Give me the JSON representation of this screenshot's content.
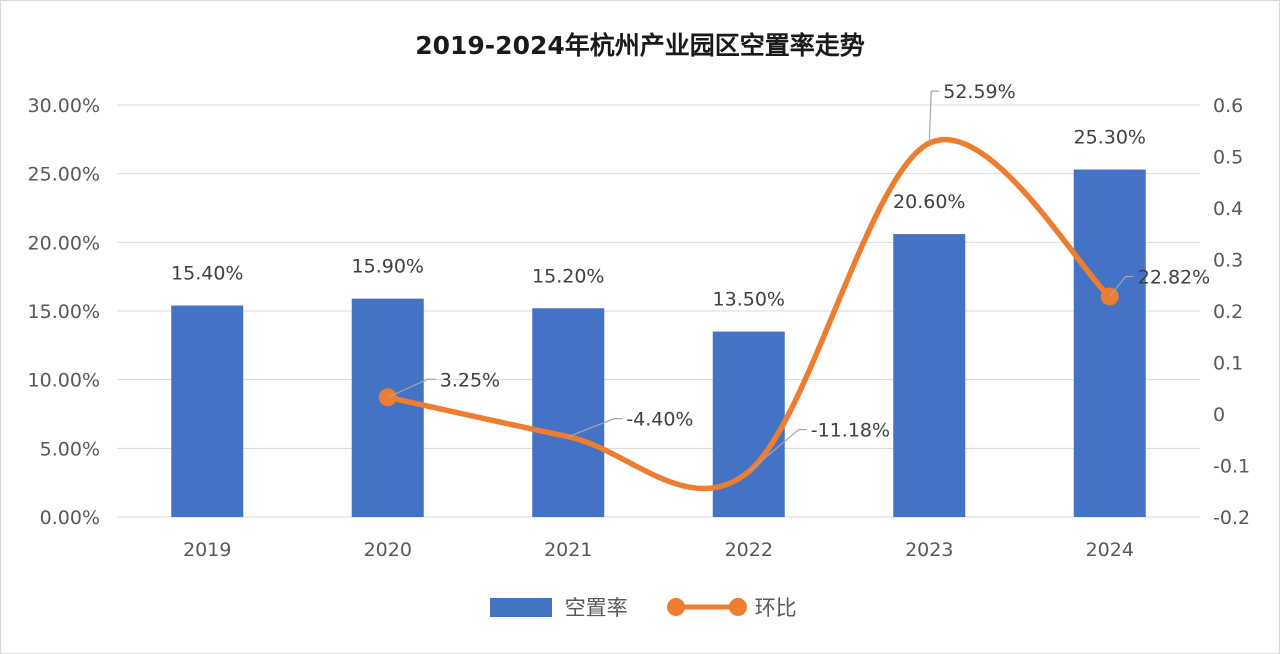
{
  "chart_data": {
    "type": "bar+line",
    "title": "2019-2024年杭州产业园区空置率走势",
    "categories": [
      "2019",
      "2020",
      "2021",
      "2022",
      "2023",
      "2024"
    ],
    "series": [
      {
        "name": "空置率",
        "type": "bar",
        "axis": "left",
        "color": "#4472c4",
        "values": [
          15.4,
          15.9,
          15.2,
          13.5,
          20.6,
          25.3
        ],
        "labels": [
          "15.40%",
          "15.90%",
          "15.20%",
          "13.50%",
          "20.60%",
          "25.30%"
        ]
      },
      {
        "name": "环比",
        "type": "line",
        "smooth": true,
        "axis": "right",
        "color": "#ed7d31",
        "values": [
          null,
          0.0325,
          -0.044,
          -0.1118,
          0.5259,
          0.2282
        ],
        "labels": [
          "",
          "3.25%",
          "-4.40%",
          "-11.18%",
          "52.59%",
          "22.82%"
        ]
      }
    ],
    "y_left": {
      "min": 0,
      "max": 30,
      "ticks": [
        "0.00%",
        "5.00%",
        "10.00%",
        "15.00%",
        "20.00%",
        "25.00%",
        "30.00%"
      ]
    },
    "y_right": {
      "min": -0.2,
      "max": 0.6,
      "ticks": [
        "-0.2",
        "-0.1",
        "0",
        "0.1",
        "0.2",
        "0.3",
        "0.4",
        "0.5",
        "0.6"
      ]
    },
    "grid": true,
    "legend_position": "bottom"
  }
}
